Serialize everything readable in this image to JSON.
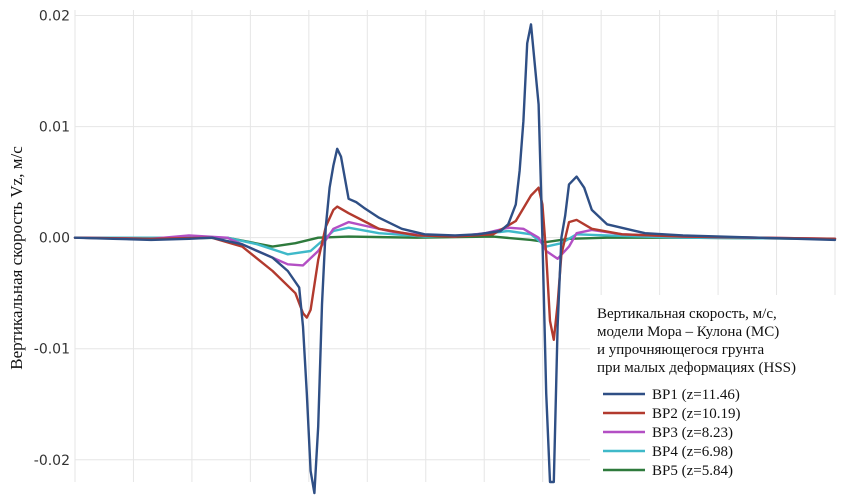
{
  "chart_data": {
    "type": "line",
    "ylabel": "Вертикальная скорость Vz, м/с",
    "ylim": [
      -0.022,
      0.0205
    ],
    "yticks": [
      0.02,
      0.01,
      0.0,
      -0.01,
      -0.02
    ],
    "ytick_labels": [
      "0.02",
      "0.01",
      "0.00",
      "-0.01",
      "-0.02"
    ],
    "xlim": [
      0,
      1
    ],
    "grid": true,
    "legend_position": "bottom-right",
    "legend_title": [
      "Вертикальная скорость, м/с,",
      "модели Мора – Кулона (МС)",
      "и упрочняющегося грунта",
      "при малых деформациях (HSS)"
    ],
    "series": [
      {
        "name": "BP1 (z=11.46)",
        "color": "#2f4f85",
        "x": [
          0.0,
          0.05,
          0.1,
          0.15,
          0.18,
          0.22,
          0.26,
          0.28,
          0.295,
          0.3,
          0.305,
          0.31,
          0.315,
          0.32,
          0.325,
          0.33,
          0.335,
          0.34,
          0.345,
          0.35,
          0.36,
          0.37,
          0.38,
          0.4,
          0.43,
          0.46,
          0.5,
          0.53,
          0.56,
          0.57,
          0.58,
          0.585,
          0.59,
          0.595,
          0.6,
          0.61,
          0.615,
          0.62,
          0.625,
          0.63,
          0.635,
          0.64,
          0.645,
          0.65,
          0.66,
          0.67,
          0.68,
          0.7,
          0.75,
          0.8,
          0.85,
          0.9,
          0.95,
          1.0
        ],
        "y": [
          0.0,
          -0.0001,
          -0.0002,
          -0.0001,
          0.0,
          -0.0006,
          -0.0018,
          -0.003,
          -0.0045,
          -0.008,
          -0.014,
          -0.021,
          -0.023,
          -0.017,
          -0.006,
          0.001,
          0.0045,
          0.0065,
          0.008,
          0.0073,
          0.0035,
          0.0032,
          0.0027,
          0.0018,
          0.0008,
          0.0003,
          0.0002,
          0.0003,
          0.0006,
          0.0012,
          0.003,
          0.006,
          0.0105,
          0.0175,
          0.0192,
          0.012,
          0.0,
          -0.014,
          -0.022,
          -0.022,
          -0.008,
          0.0,
          0.002,
          0.0048,
          0.0055,
          0.0045,
          0.0025,
          0.0012,
          0.0004,
          0.0002,
          0.0001,
          0.0,
          -0.0001,
          -0.0002
        ]
      },
      {
        "name": "BP2 (z=10.19)",
        "color": "#b23a2e",
        "x": [
          0.0,
          0.1,
          0.18,
          0.22,
          0.26,
          0.29,
          0.3,
          0.305,
          0.31,
          0.32,
          0.33,
          0.34,
          0.345,
          0.36,
          0.38,
          0.4,
          0.45,
          0.5,
          0.55,
          0.58,
          0.6,
          0.61,
          0.615,
          0.62,
          0.625,
          0.63,
          0.635,
          0.64,
          0.65,
          0.66,
          0.68,
          0.72,
          0.8,
          0.9,
          1.0
        ],
        "y": [
          0.0,
          -0.0001,
          0.0,
          -0.0008,
          -0.003,
          -0.005,
          -0.0068,
          -0.0072,
          -0.0065,
          -0.002,
          0.001,
          0.0025,
          0.0028,
          0.0022,
          0.0015,
          0.0008,
          0.0002,
          0.0001,
          0.0003,
          0.0015,
          0.0038,
          0.0045,
          0.003,
          -0.0015,
          -0.0075,
          -0.0092,
          -0.006,
          -0.0015,
          0.0014,
          0.0016,
          0.0008,
          0.0003,
          0.0001,
          0.0,
          -0.0001
        ]
      },
      {
        "name": "BP3 (z=8.23)",
        "color": "#b34fc4",
        "x": [
          0.0,
          0.1,
          0.15,
          0.2,
          0.24,
          0.28,
          0.3,
          0.32,
          0.34,
          0.36,
          0.38,
          0.42,
          0.46,
          0.5,
          0.54,
          0.57,
          0.59,
          0.61,
          0.62,
          0.635,
          0.65,
          0.66,
          0.68,
          0.72,
          0.8,
          0.9,
          1.0
        ],
        "y": [
          0.0,
          -0.0001,
          0.0002,
          0.0,
          -0.0012,
          -0.0024,
          -0.0025,
          -0.0012,
          0.0008,
          0.0014,
          0.0011,
          0.0005,
          0.0002,
          0.0001,
          0.0004,
          0.0009,
          0.0008,
          0.0,
          -0.0012,
          -0.0019,
          -0.0008,
          0.0004,
          0.0007,
          0.0003,
          0.0001,
          0.0,
          -0.0001
        ]
      },
      {
        "name": "BP4 (z=6.98)",
        "color": "#3fb9c9",
        "x": [
          0.0,
          0.1,
          0.2,
          0.24,
          0.28,
          0.31,
          0.34,
          0.36,
          0.4,
          0.46,
          0.52,
          0.57,
          0.6,
          0.62,
          0.64,
          0.66,
          0.7,
          0.8,
          1.0
        ],
        "y": [
          0.0,
          0.0,
          0.0,
          -0.0006,
          -0.0015,
          -0.0012,
          0.0006,
          0.0009,
          0.0004,
          0.0001,
          0.0002,
          0.0006,
          0.0003,
          -0.0008,
          -0.0005,
          0.0003,
          0.0002,
          0.0,
          -0.0001
        ]
      },
      {
        "name": "BP5 (z=5.84)",
        "color": "#2e7a3c",
        "x": [
          0.0,
          0.1,
          0.2,
          0.23,
          0.26,
          0.29,
          0.32,
          0.36,
          0.45,
          0.55,
          0.6,
          0.62,
          0.65,
          0.7,
          0.8,
          1.0
        ],
        "y": [
          0.0,
          -0.0001,
          0.0,
          -0.0004,
          -0.0008,
          -0.0005,
          0.0,
          0.0001,
          0.0,
          0.0001,
          -0.0002,
          -0.0004,
          -0.0001,
          0.0,
          0.0,
          -0.0001
        ]
      }
    ]
  }
}
